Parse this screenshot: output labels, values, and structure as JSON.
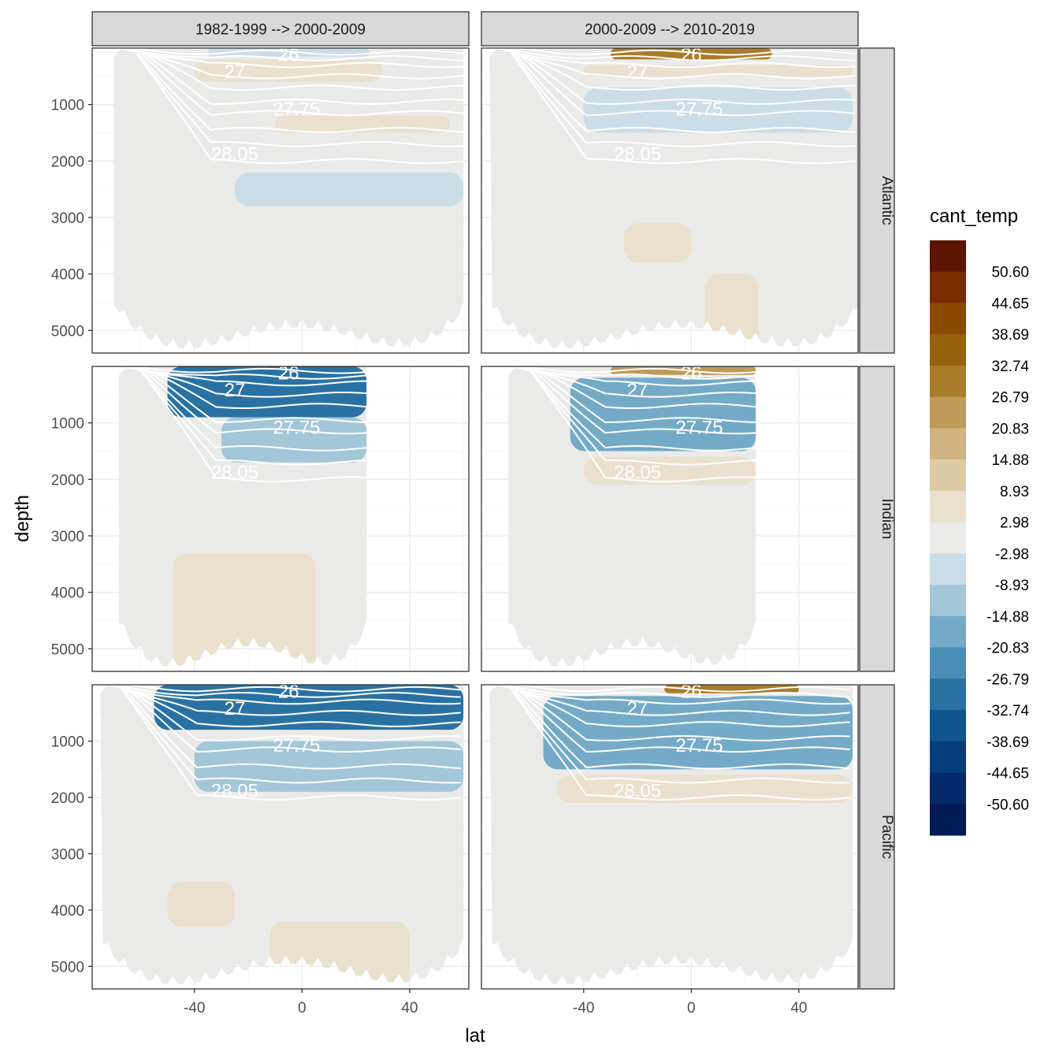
{
  "chart_data": {
    "type": "heatmap",
    "description_kind": "faceted zonal-mean sections",
    "xlabel": "lat",
    "ylabel": "depth",
    "x_ticks": [
      -40,
      0,
      40
    ],
    "y_ticks": [
      1000,
      2000,
      3000,
      4000,
      5000
    ],
    "xlim": [
      -78,
      62
    ],
    "ylim_reversed": [
      5400,
      0
    ],
    "column_strips": [
      "1982-1999 --> 2000-2009",
      "2000-2009 --> 2010-2019"
    ],
    "row_strips": [
      "Atlantic",
      "Indian",
      "Pacific"
    ],
    "legend": {
      "title": "cant_temp",
      "labels": [
        "50.60",
        "44.65",
        "38.69",
        "32.74",
        "26.79",
        "20.83",
        "14.88",
        "8.93",
        "2.98",
        "-2.98",
        "-8.93",
        "-14.88",
        "-20.83",
        "-26.79",
        "-32.74",
        "-38.69",
        "-44.65",
        "-50.60"
      ],
      "colors": [
        "#5e1500",
        "#7a2c00",
        "#8b4a00",
        "#96620c",
        "#a97c2a",
        "#bf9a58",
        "#cfb482",
        "#dccba4",
        "#ebe0cd",
        "#eaebe9",
        "#cadde8",
        "#a3c6d9",
        "#74aac7",
        "#4a8eb5",
        "#2a71a3",
        "#0f5590",
        "#053c7c",
        "#022a6a",
        "#001a55"
      ]
    },
    "isopycnal_labels": [
      "26",
      "27",
      "27.75",
      "28.05"
    ],
    "panels": [
      {
        "col": 0,
        "row": 0,
        "basin": "Atlantic",
        "period": "1982-1999 --> 2000-2009",
        "lat_range": [
          -70,
          60
        ],
        "anomalies": [
          {
            "lat": [
              -35,
              25
            ],
            "depth": [
              0,
              150
            ],
            "bin": "-2.98"
          },
          {
            "lat": [
              -40,
              30
            ],
            "depth": [
              200,
              600
            ],
            "bin": "8.93"
          },
          {
            "lat": [
              -10,
              55
            ],
            "depth": [
              1200,
              1500
            ],
            "bin": "8.93"
          },
          {
            "lat": [
              -25,
              60
            ],
            "depth": [
              2200,
              2800
            ],
            "bin": "-2.98"
          }
        ]
      },
      {
        "col": 1,
        "row": 0,
        "basin": "Atlantic",
        "period": "2000-2009 --> 2010-2019",
        "lat_range": [
          -75,
          62
        ],
        "anomalies": [
          {
            "lat": [
              -30,
              30
            ],
            "depth": [
              0,
              200
            ],
            "bin": "32.74"
          },
          {
            "lat": [
              -40,
              60
            ],
            "depth": [
              300,
              500
            ],
            "bin": "8.93"
          },
          {
            "lat": [
              -40,
              60
            ],
            "depth": [
              700,
              1500
            ],
            "bin": "-2.98"
          },
          {
            "lat": [
              -25,
              0
            ],
            "depth": [
              3100,
              3800
            ],
            "bin": "8.93"
          },
          {
            "lat": [
              5,
              25
            ],
            "depth": [
              4000,
              5400
            ],
            "bin": "8.93"
          }
        ]
      },
      {
        "col": 0,
        "row": 1,
        "basin": "Indian",
        "period": "1982-1999 --> 2000-2009",
        "lat_range": [
          -68,
          24
        ],
        "anomalies": [
          {
            "lat": [
              -50,
              24
            ],
            "depth": [
              0,
              900
            ],
            "bin": "-26.79"
          },
          {
            "lat": [
              -30,
              24
            ],
            "depth": [
              900,
              1700
            ],
            "bin": "-8.93"
          },
          {
            "lat": [
              -48,
              5
            ],
            "depth": [
              3300,
              5400
            ],
            "bin": "8.93"
          }
        ]
      },
      {
        "col": 1,
        "row": 1,
        "basin": "Indian",
        "period": "2000-2009 --> 2010-2019",
        "lat_range": [
          -68,
          24
        ],
        "anomalies": [
          {
            "lat": [
              -30,
              24
            ],
            "depth": [
              0,
              150
            ],
            "bin": "26.79"
          },
          {
            "lat": [
              -45,
              24
            ],
            "depth": [
              200,
              1500
            ],
            "bin": "-14.88"
          },
          {
            "lat": [
              -40,
              24
            ],
            "depth": [
              1600,
              2100
            ],
            "bin": "8.93"
          }
        ]
      },
      {
        "col": 0,
        "row": 2,
        "basin": "Pacific",
        "period": "1982-1999 --> 2000-2009",
        "lat_range": [
          -75,
          60
        ],
        "anomalies": [
          {
            "lat": [
              -55,
              60
            ],
            "depth": [
              0,
              800
            ],
            "bin": "-26.79"
          },
          {
            "lat": [
              -40,
              60
            ],
            "depth": [
              1000,
              1900
            ],
            "bin": "-8.93"
          },
          {
            "lat": [
              -50,
              -25
            ],
            "depth": [
              3500,
              4300
            ],
            "bin": "8.93"
          },
          {
            "lat": [
              -12,
              40
            ],
            "depth": [
              4200,
              5400
            ],
            "bin": "8.93"
          }
        ]
      },
      {
        "col": 1,
        "row": 2,
        "basin": "Pacific",
        "period": "2000-2009 --> 2010-2019",
        "lat_range": [
          -75,
          60
        ],
        "anomalies": [
          {
            "lat": [
              -10,
              40
            ],
            "depth": [
              0,
              150
            ],
            "bin": "32.74"
          },
          {
            "lat": [
              -55,
              60
            ],
            "depth": [
              200,
              1500
            ],
            "bin": "-14.88"
          },
          {
            "lat": [
              -50,
              60
            ],
            "depth": [
              1600,
              2100
            ],
            "bin": "8.93"
          }
        ]
      }
    ]
  }
}
